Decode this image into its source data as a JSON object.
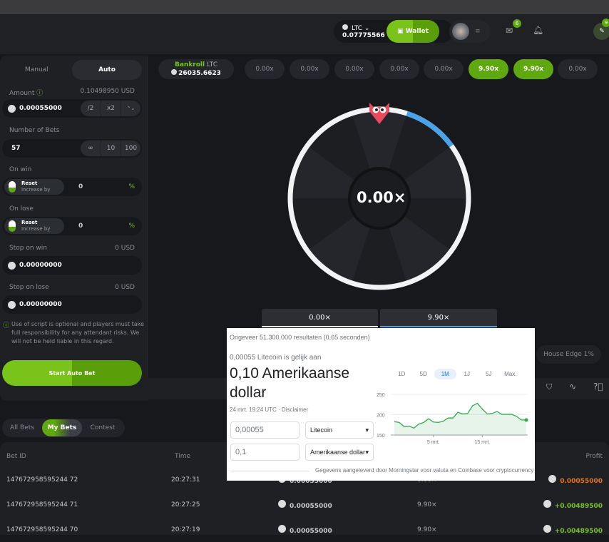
{
  "header": {
    "currency": "LTC",
    "balance": "0.07775566",
    "wallet_label": "Wallet",
    "mail_badge": "6",
    "chat_badge": "9"
  },
  "left": {
    "tabs": [
      "Manual",
      "Auto"
    ],
    "amount_label": "Amount",
    "amount_usd": "0.10498950 USD",
    "amount": "0.00055000",
    "half": "/2",
    "double": "x2",
    "bets_label": "Number of Bets",
    "bets": "57",
    "bets_opts": [
      "∞",
      "10",
      "100"
    ],
    "on_win": "On win",
    "on_lose": "On lose",
    "reset": "Reset",
    "increase": "Increase by",
    "win_val": "0",
    "lose_val": "0",
    "pct": "%",
    "stop_win": "Stop on win",
    "stop_win_usd": "0 USD",
    "stop_win_val": "0.00000000",
    "stop_lose": "Stop on lose",
    "stop_lose_usd": "0 USD",
    "stop_lose_val": "0.00000000",
    "disclaimer": "Use of script is optional and players must take full responsibility for any attendant risks. We will not be held liable in this regard.",
    "start": "Start Auto Bet"
  },
  "bankroll": {
    "label": "Bankroll",
    "cur": "LTC",
    "value": "26035.6623"
  },
  "history": [
    "0.00x",
    "0.00x",
    "0.00x",
    "0.00x",
    "0.00x",
    "9.90x",
    "9.90x",
    "0.00x"
  ],
  "wheel": {
    "center": "0.00×",
    "tabs": [
      "0.00×",
      "9.90×"
    ],
    "house_edge": "House Edge 1%",
    "colors": {
      "accent": "#4aa3e8",
      "pointer": "#e94b5c"
    }
  },
  "bets": {
    "tabs": [
      "All Bets",
      "My Bets",
      "Contest"
    ],
    "headers": {
      "id": "Bet ID",
      "time": "Time",
      "profit": "Profit"
    },
    "rows": [
      {
        "id": "147672958595244 72",
        "time": "20:27:31",
        "amount": "0.00055000",
        "payout": "0.00×",
        "profit": "0.00055000",
        "win": false
      },
      {
        "id": "147672958595244 71",
        "time": "20:27:25",
        "amount": "0.00055000",
        "payout": "9.90×",
        "profit": "+0.00489500",
        "win": true
      },
      {
        "id": "147672958595244 70",
        "time": "20:27:19",
        "amount": "0.00055000",
        "payout": "9.90×",
        "profit": "+0.00489500",
        "win": true
      }
    ]
  },
  "search": {
    "results": "Ongeveer 51.300.000 resultaten (0,65 seconden)",
    "equals": "0,00055 Litecoin is gelijk aan",
    "result": "0,10 Amerikaanse dollar",
    "time": "24 mrt. 19:24 UTC · Disclaimer",
    "from_val": "0,00055",
    "from_cur": "Litecoin",
    "to_val": "0,1",
    "to_cur": "Amerikaanse dollar",
    "ranges": [
      "1D",
      "5D",
      "1M",
      "1J",
      "5J",
      "Max."
    ],
    "active_range": "1M",
    "source": "Gegevens aangeleverd door Morningstar voor valuta en Coinbase voor cryptocurrency"
  },
  "chart_data": {
    "type": "area",
    "ylim": [
      150,
      250
    ],
    "yticks": [
      150,
      200,
      250
    ],
    "xticks": [
      "5 mrt.",
      "15 mrt."
    ],
    "x": [
      "25 feb",
      "26 feb",
      "27 feb",
      "28 feb",
      "1 mrt",
      "2 mrt",
      "3 mrt",
      "4 mrt",
      "5 mrt",
      "6 mrt",
      "7 mrt",
      "8 mrt",
      "9 mrt",
      "10 mrt",
      "11 mrt",
      "12 mrt",
      "13 mrt",
      "14 mrt",
      "15 mrt",
      "16 mrt",
      "17 mrt",
      "18 mrt",
      "19 mrt",
      "20 mrt",
      "21 mrt",
      "22 mrt",
      "23 mrt",
      "24 mrt"
    ],
    "values": [
      183,
      181,
      171,
      172,
      167,
      177,
      181,
      190,
      182,
      181,
      184,
      192,
      192,
      206,
      202,
      203,
      222,
      228,
      214,
      202,
      203,
      208,
      201,
      201,
      201,
      196,
      187,
      187
    ],
    "color": "#34a853"
  }
}
